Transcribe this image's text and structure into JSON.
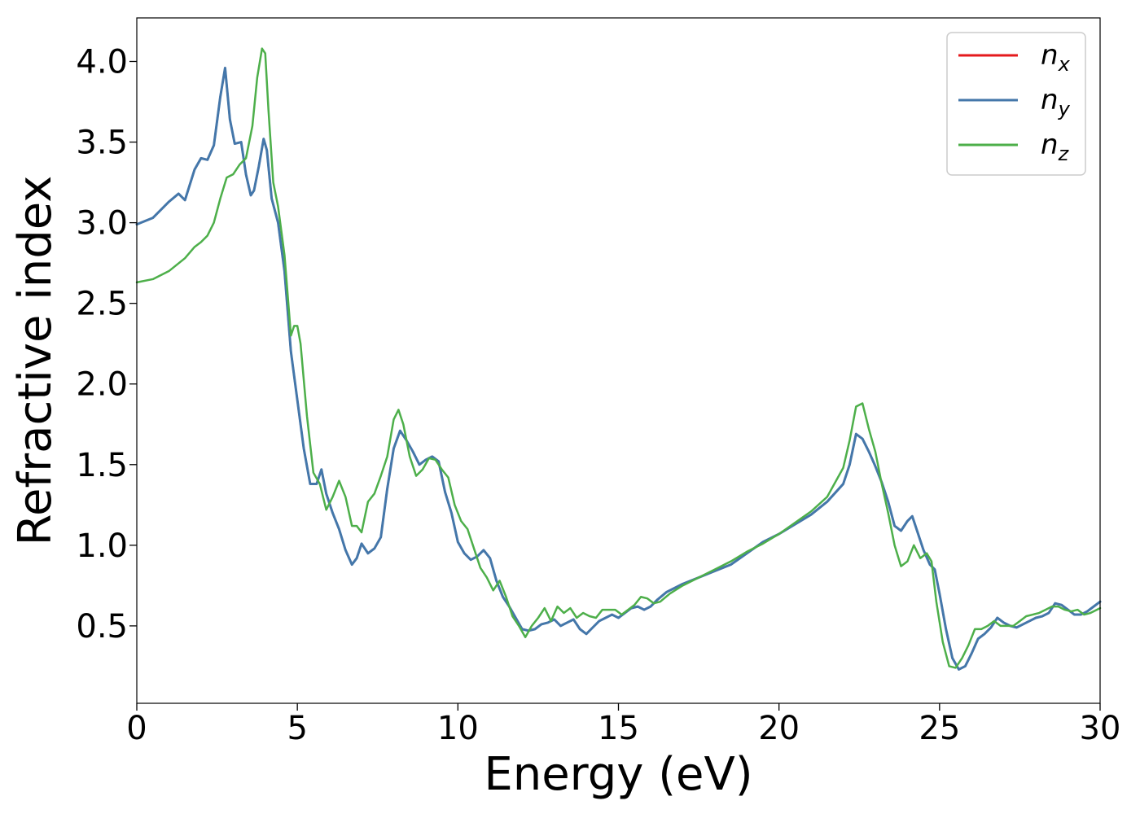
{
  "chart_data": {
    "type": "line",
    "title": "",
    "xlabel": "Energy (eV)",
    "ylabel": "Refractive index",
    "xlim": [
      0,
      30
    ],
    "ylim": [
      0.02,
      4.27
    ],
    "xticks": [
      0,
      5,
      10,
      15,
      20,
      25,
      30
    ],
    "xtick_labels": [
      "0",
      "5",
      "10",
      "15",
      "20",
      "25",
      "30"
    ],
    "yticks": [
      0.5,
      1.0,
      1.5,
      2.0,
      2.5,
      3.0,
      3.5,
      4.0
    ],
    "ytick_labels": [
      "0.5",
      "1.0",
      "1.5",
      "2.0",
      "2.5",
      "3.0",
      "3.5",
      "4.0"
    ],
    "grid": false,
    "legend_position": "top-right",
    "series": [
      {
        "name": "n",
        "subscript": "x",
        "color": "#e41a1c",
        "x": [
          0,
          0.5,
          1.0,
          1.3,
          1.5,
          1.8,
          2.0,
          2.2,
          2.4,
          2.6,
          2.75,
          2.9,
          3.05,
          3.25,
          3.4,
          3.55,
          3.65,
          3.8,
          3.95,
          4.05,
          4.2,
          4.4,
          4.6,
          4.8,
          5.0,
          5.2,
          5.4,
          5.6,
          5.75,
          5.9,
          6.1,
          6.3,
          6.5,
          6.7,
          6.85,
          7.0,
          7.2,
          7.4,
          7.6,
          7.8,
          8.0,
          8.2,
          8.4,
          8.6,
          8.8,
          9.0,
          9.2,
          9.4,
          9.6,
          9.8,
          10.0,
          10.2,
          10.4,
          10.6,
          10.8,
          11.0,
          11.2,
          11.4,
          11.6,
          11.8,
          12.0,
          12.2,
          12.4,
          12.6,
          12.8,
          13.0,
          13.2,
          13.4,
          13.6,
          13.8,
          14.0,
          14.2,
          14.4,
          14.6,
          14.8,
          15.0,
          15.2,
          15.4,
          15.6,
          15.8,
          16.0,
          16.2,
          16.5,
          17.0,
          17.5,
          18.0,
          18.5,
          19.0,
          19.5,
          20.0,
          20.5,
          21.0,
          21.5,
          22.0,
          22.2,
          22.4,
          22.6,
          22.8,
          23.0,
          23.2,
          23.4,
          23.6,
          23.8,
          24.0,
          24.15,
          24.3,
          24.5,
          24.7,
          24.85,
          25.0,
          25.2,
          25.4,
          25.6,
          25.8,
          26.0,
          26.2,
          26.4,
          26.6,
          26.8,
          27.0,
          27.2,
          27.4,
          27.6,
          27.8,
          28.0,
          28.2,
          28.4,
          28.6,
          28.8,
          29.0,
          29.2,
          29.4,
          29.6,
          29.8,
          30.0
        ],
        "y": [
          2.99,
          3.03,
          3.13,
          3.18,
          3.14,
          3.33,
          3.4,
          3.39,
          3.48,
          3.78,
          3.96,
          3.64,
          3.49,
          3.5,
          3.3,
          3.17,
          3.2,
          3.35,
          3.52,
          3.45,
          3.15,
          3.0,
          2.7,
          2.2,
          1.9,
          1.6,
          1.38,
          1.38,
          1.47,
          1.32,
          1.2,
          1.1,
          0.97,
          0.88,
          0.92,
          1.01,
          0.95,
          0.98,
          1.05,
          1.35,
          1.6,
          1.71,
          1.65,
          1.58,
          1.5,
          1.53,
          1.55,
          1.52,
          1.33,
          1.2,
          1.02,
          0.95,
          0.91,
          0.93,
          0.97,
          0.92,
          0.78,
          0.68,
          0.62,
          0.55,
          0.48,
          0.47,
          0.48,
          0.51,
          0.52,
          0.54,
          0.5,
          0.52,
          0.54,
          0.48,
          0.45,
          0.49,
          0.53,
          0.55,
          0.57,
          0.55,
          0.58,
          0.61,
          0.62,
          0.6,
          0.62,
          0.66,
          0.71,
          0.76,
          0.8,
          0.84,
          0.88,
          0.95,
          1.02,
          1.07,
          1.13,
          1.19,
          1.27,
          1.38,
          1.5,
          1.69,
          1.66,
          1.58,
          1.49,
          1.39,
          1.27,
          1.12,
          1.09,
          1.15,
          1.18,
          1.09,
          0.97,
          0.88,
          0.85,
          0.7,
          0.48,
          0.3,
          0.23,
          0.25,
          0.33,
          0.42,
          0.45,
          0.49,
          0.55,
          0.52,
          0.5,
          0.49,
          0.51,
          0.53,
          0.55,
          0.56,
          0.58,
          0.64,
          0.63,
          0.6,
          0.57,
          0.57,
          0.59,
          0.62,
          0.65
        ]
      },
      {
        "name": "n",
        "subscript": "y",
        "color": "#4477aa",
        "x": [
          0,
          0.5,
          1.0,
          1.3,
          1.5,
          1.8,
          2.0,
          2.2,
          2.4,
          2.6,
          2.75,
          2.9,
          3.05,
          3.25,
          3.4,
          3.55,
          3.65,
          3.8,
          3.95,
          4.05,
          4.2,
          4.4,
          4.6,
          4.8,
          5.0,
          5.2,
          5.4,
          5.6,
          5.75,
          5.9,
          6.1,
          6.3,
          6.5,
          6.7,
          6.85,
          7.0,
          7.2,
          7.4,
          7.6,
          7.8,
          8.0,
          8.2,
          8.4,
          8.6,
          8.8,
          9.0,
          9.2,
          9.4,
          9.6,
          9.8,
          10.0,
          10.2,
          10.4,
          10.6,
          10.8,
          11.0,
          11.2,
          11.4,
          11.6,
          11.8,
          12.0,
          12.2,
          12.4,
          12.6,
          12.8,
          13.0,
          13.2,
          13.4,
          13.6,
          13.8,
          14.0,
          14.2,
          14.4,
          14.6,
          14.8,
          15.0,
          15.2,
          15.4,
          15.6,
          15.8,
          16.0,
          16.2,
          16.5,
          17.0,
          17.5,
          18.0,
          18.5,
          19.0,
          19.5,
          20.0,
          20.5,
          21.0,
          21.5,
          22.0,
          22.2,
          22.4,
          22.6,
          22.8,
          23.0,
          23.2,
          23.4,
          23.6,
          23.8,
          24.0,
          24.15,
          24.3,
          24.5,
          24.7,
          24.85,
          25.0,
          25.2,
          25.4,
          25.6,
          25.8,
          26.0,
          26.2,
          26.4,
          26.6,
          26.8,
          27.0,
          27.2,
          27.4,
          27.6,
          27.8,
          28.0,
          28.2,
          28.4,
          28.6,
          28.8,
          29.0,
          29.2,
          29.4,
          29.6,
          29.8,
          30.0
        ],
        "y": [
          2.99,
          3.03,
          3.13,
          3.18,
          3.14,
          3.33,
          3.4,
          3.39,
          3.48,
          3.78,
          3.96,
          3.64,
          3.49,
          3.5,
          3.3,
          3.17,
          3.2,
          3.35,
          3.52,
          3.45,
          3.15,
          3.0,
          2.7,
          2.2,
          1.9,
          1.6,
          1.38,
          1.38,
          1.47,
          1.32,
          1.2,
          1.1,
          0.97,
          0.88,
          0.92,
          1.01,
          0.95,
          0.98,
          1.05,
          1.35,
          1.6,
          1.71,
          1.65,
          1.58,
          1.5,
          1.53,
          1.55,
          1.52,
          1.33,
          1.2,
          1.02,
          0.95,
          0.91,
          0.93,
          0.97,
          0.92,
          0.78,
          0.68,
          0.62,
          0.55,
          0.48,
          0.47,
          0.48,
          0.51,
          0.52,
          0.54,
          0.5,
          0.52,
          0.54,
          0.48,
          0.45,
          0.49,
          0.53,
          0.55,
          0.57,
          0.55,
          0.58,
          0.61,
          0.62,
          0.6,
          0.62,
          0.66,
          0.71,
          0.76,
          0.8,
          0.84,
          0.88,
          0.95,
          1.02,
          1.07,
          1.13,
          1.19,
          1.27,
          1.38,
          1.5,
          1.69,
          1.66,
          1.58,
          1.49,
          1.39,
          1.27,
          1.12,
          1.09,
          1.15,
          1.18,
          1.09,
          0.97,
          0.88,
          0.85,
          0.7,
          0.48,
          0.3,
          0.23,
          0.25,
          0.33,
          0.42,
          0.45,
          0.49,
          0.55,
          0.52,
          0.5,
          0.49,
          0.51,
          0.53,
          0.55,
          0.56,
          0.58,
          0.64,
          0.63,
          0.6,
          0.57,
          0.57,
          0.59,
          0.62,
          0.65
        ]
      },
      {
        "name": "n",
        "subscript": "z",
        "color": "#4daf4a",
        "x": [
          0,
          0.5,
          1.0,
          1.5,
          1.8,
          2.0,
          2.2,
          2.4,
          2.6,
          2.8,
          3.0,
          3.2,
          3.4,
          3.6,
          3.75,
          3.9,
          4.0,
          4.1,
          4.25,
          4.4,
          4.6,
          4.8,
          4.9,
          5.0,
          5.1,
          5.3,
          5.5,
          5.7,
          5.9,
          6.1,
          6.3,
          6.5,
          6.7,
          6.85,
          7.0,
          7.2,
          7.4,
          7.6,
          7.8,
          8.0,
          8.15,
          8.3,
          8.5,
          8.7,
          8.9,
          9.1,
          9.3,
          9.5,
          9.7,
          9.9,
          10.1,
          10.3,
          10.5,
          10.7,
          10.9,
          11.1,
          11.3,
          11.5,
          11.7,
          11.9,
          12.1,
          12.3,
          12.5,
          12.7,
          12.9,
          13.1,
          13.3,
          13.5,
          13.7,
          13.9,
          14.1,
          14.3,
          14.5,
          14.7,
          14.9,
          15.1,
          15.3,
          15.5,
          15.7,
          15.9,
          16.1,
          16.3,
          16.6,
          17.0,
          17.5,
          18.0,
          18.5,
          19.0,
          19.5,
          20.0,
          20.5,
          21.0,
          21.5,
          22.0,
          22.2,
          22.4,
          22.6,
          22.8,
          23.0,
          23.2,
          23.4,
          23.6,
          23.8,
          24.0,
          24.2,
          24.4,
          24.6,
          24.75,
          24.9,
          25.1,
          25.3,
          25.5,
          25.7,
          25.9,
          26.1,
          26.3,
          26.5,
          26.7,
          26.9,
          27.1,
          27.3,
          27.5,
          27.7,
          27.9,
          28.1,
          28.3,
          28.5,
          28.7,
          28.9,
          29.1,
          29.3,
          29.5,
          29.7,
          30.0
        ],
        "y": [
          2.63,
          2.65,
          2.7,
          2.78,
          2.85,
          2.88,
          2.92,
          3.0,
          3.15,
          3.28,
          3.3,
          3.36,
          3.4,
          3.6,
          3.9,
          4.08,
          4.05,
          3.7,
          3.25,
          3.1,
          2.8,
          2.3,
          2.36,
          2.36,
          2.25,
          1.8,
          1.45,
          1.38,
          1.22,
          1.3,
          1.4,
          1.3,
          1.12,
          1.12,
          1.08,
          1.27,
          1.32,
          1.43,
          1.55,
          1.78,
          1.84,
          1.75,
          1.55,
          1.43,
          1.47,
          1.54,
          1.53,
          1.47,
          1.42,
          1.25,
          1.15,
          1.1,
          0.98,
          0.86,
          0.8,
          0.72,
          0.78,
          0.68,
          0.56,
          0.5,
          0.43,
          0.5,
          0.55,
          0.61,
          0.53,
          0.62,
          0.58,
          0.61,
          0.55,
          0.58,
          0.56,
          0.55,
          0.6,
          0.6,
          0.6,
          0.57,
          0.6,
          0.63,
          0.68,
          0.67,
          0.64,
          0.65,
          0.7,
          0.75,
          0.8,
          0.85,
          0.9,
          0.96,
          1.01,
          1.07,
          1.14,
          1.21,
          1.3,
          1.48,
          1.65,
          1.86,
          1.88,
          1.72,
          1.58,
          1.38,
          1.2,
          1.0,
          0.87,
          0.9,
          1.0,
          0.92,
          0.95,
          0.9,
          0.65,
          0.4,
          0.25,
          0.24,
          0.3,
          0.38,
          0.48,
          0.48,
          0.5,
          0.53,
          0.5,
          0.5,
          0.5,
          0.53,
          0.56,
          0.57,
          0.58,
          0.6,
          0.62,
          0.62,
          0.6,
          0.59,
          0.6,
          0.57,
          0.58,
          0.61
        ]
      }
    ]
  }
}
